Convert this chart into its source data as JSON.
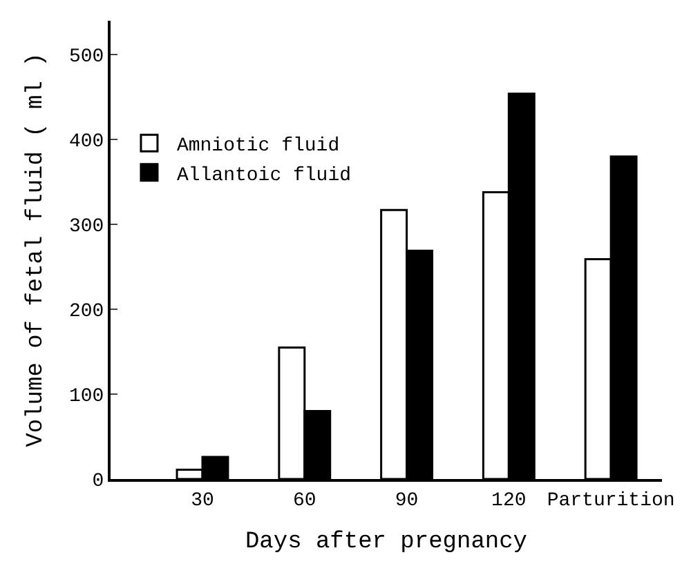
{
  "chart_data": {
    "type": "bar",
    "xlabel": "Days after pregnancy",
    "ylabel": "Volume of fetal fluid ( ml )",
    "categories": [
      "30",
      "60",
      "90",
      "120",
      "Parturition"
    ],
    "series": [
      {
        "name": "Amniotic fluid",
        "color": "#ffffff",
        "values": [
          11,
          155,
          317,
          338,
          259
        ]
      },
      {
        "name": "Allantoic fluid",
        "color": "#000000",
        "values": [
          26,
          80,
          269,
          454,
          380
        ]
      }
    ],
    "ylim": [
      0,
      540
    ],
    "yticks": [
      0,
      100,
      200,
      300,
      400,
      500
    ],
    "grid": false,
    "legend": "top left"
  }
}
